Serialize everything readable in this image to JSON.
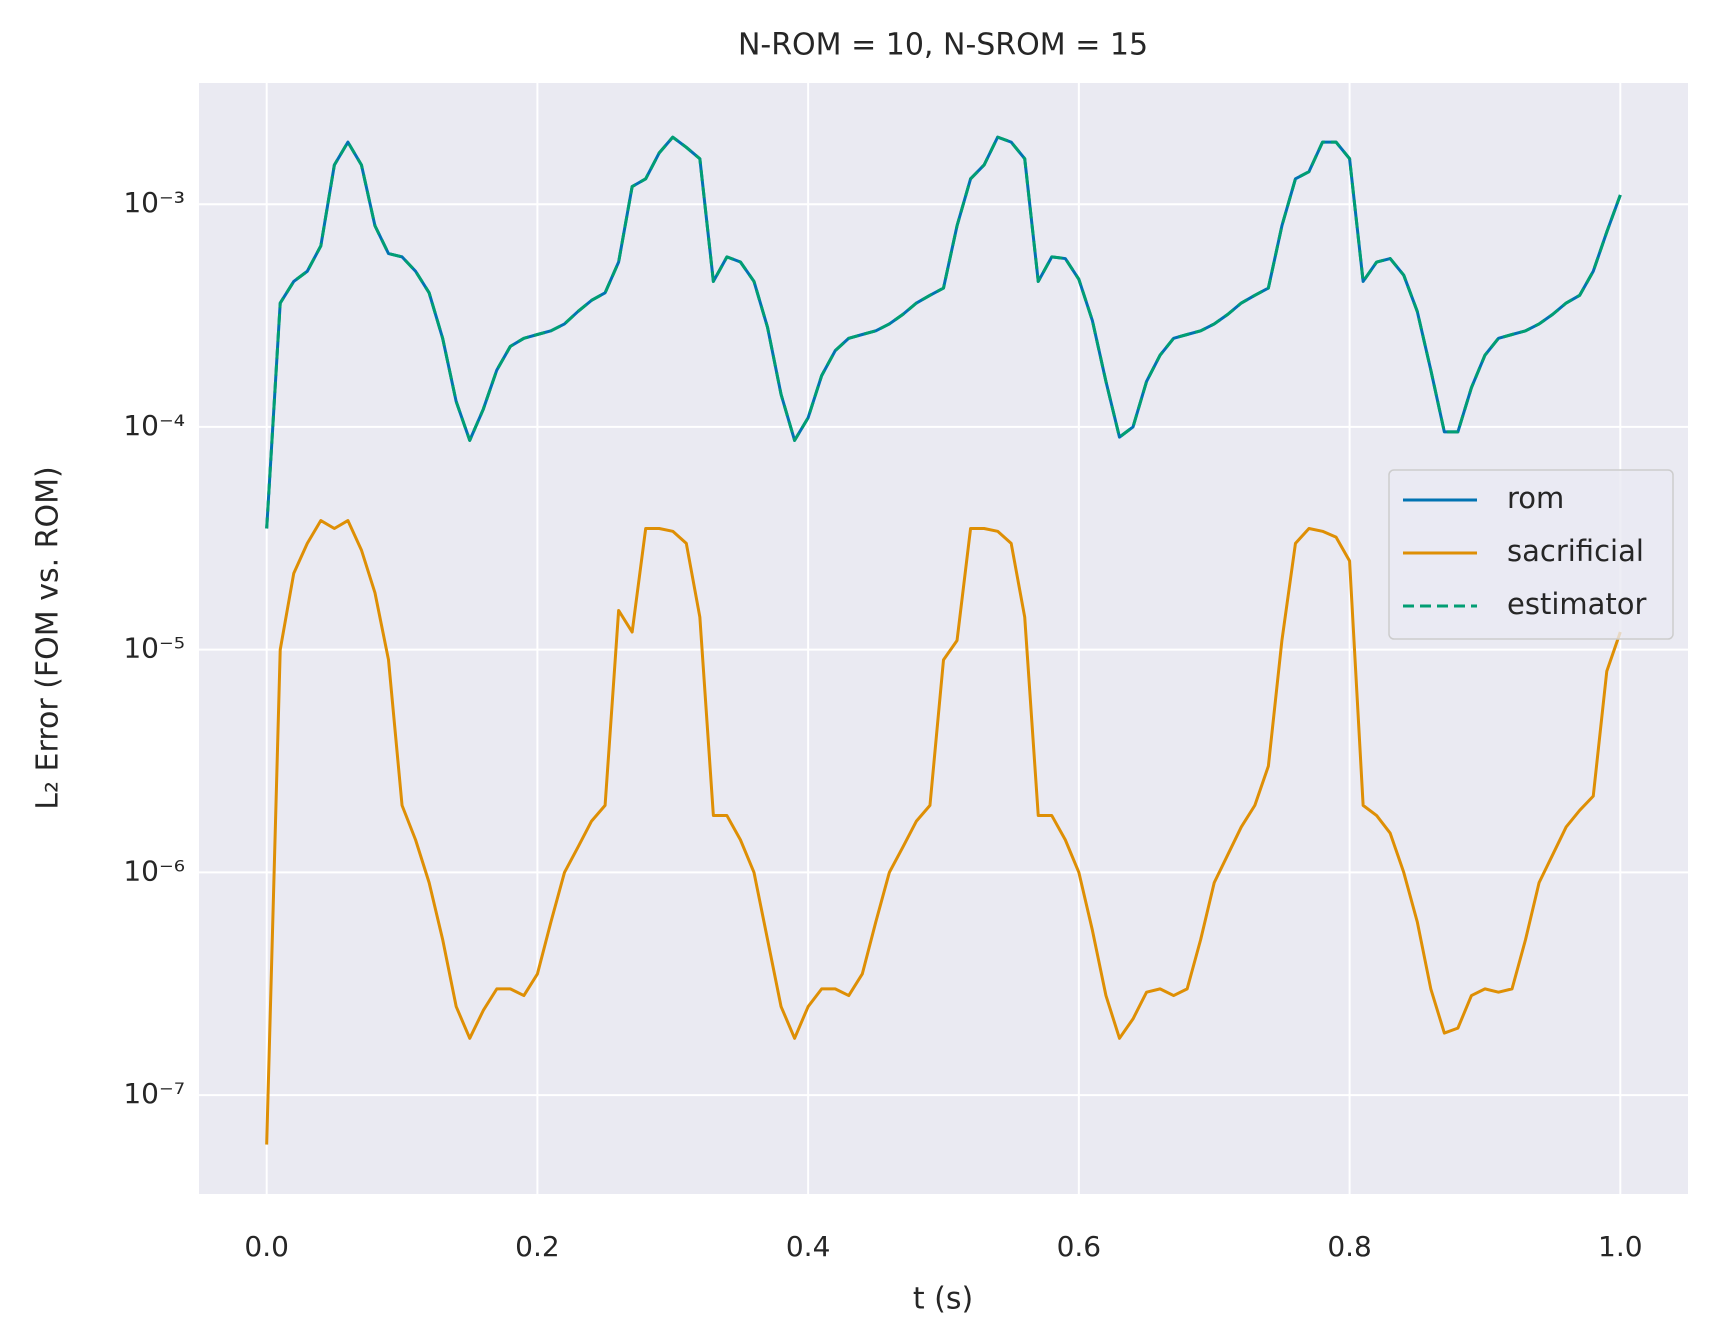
{
  "chart_data": {
    "type": "line",
    "title": "N-ROM = 10, N-SROM = 15",
    "x_label": "t (s)",
    "y_label": "L₂ Error (FOM vs. ROM)",
    "yscale": "log",
    "grid": true,
    "legend": "center right",
    "xlim": [
      -0.05,
      1.05
    ],
    "ylim": [
      3.6e-08,
      0.0035
    ],
    "xticks": [
      {
        "value": 0,
        "label": "0.0"
      },
      0.2,
      0.4,
      0.6,
      0.8,
      {
        "value": 1,
        "label": "1.0"
      }
    ],
    "yticks": [
      {
        "value": 1e-07,
        "label": "10⁻⁷"
      },
      {
        "value": 1e-06,
        "label": "10⁻⁶"
      },
      {
        "value": 1e-05,
        "label": "10⁻⁵"
      },
      {
        "value": 0.0001,
        "label": "10⁻⁴"
      },
      {
        "value": 0.001,
        "label": "10⁻³"
      }
    ],
    "x": [
      0,
      0.01,
      0.02,
      0.03,
      0.04,
      0.05,
      0.06,
      0.07,
      0.08,
      0.09,
      0.1,
      0.11,
      0.12,
      0.13,
      0.14,
      0.15,
      0.16,
      0.17,
      0.18,
      0.19,
      0.2,
      0.21,
      0.22,
      0.23,
      0.24,
      0.25,
      0.26,
      0.27,
      0.28,
      0.29,
      0.3,
      0.31,
      0.32,
      0.33,
      0.34,
      0.35,
      0.36,
      0.37,
      0.38,
      0.39,
      0.4,
      0.41,
      0.42,
      0.43,
      0.44,
      0.45,
      0.46,
      0.47,
      0.48,
      0.49,
      0.5,
      0.51,
      0.52,
      0.53,
      0.54,
      0.55,
      0.56,
      0.57,
      0.58,
      0.59,
      0.6,
      0.61,
      0.62,
      0.63,
      0.64,
      0.65,
      0.66,
      0.67,
      0.68,
      0.69,
      0.7,
      0.71,
      0.72,
      0.73,
      0.74,
      0.75,
      0.76,
      0.77,
      0.78,
      0.79,
      0.8,
      0.81,
      0.82,
      0.83,
      0.84,
      0.85,
      0.86,
      0.87,
      0.88,
      0.89,
      0.9,
      0.91,
      0.92,
      0.93,
      0.94,
      0.95,
      0.96,
      0.97,
      0.98,
      0.99,
      1
    ],
    "series": [
      {
        "name": "rom",
        "color": "#0173b2",
        "dash": false,
        "values": [
          3.5e-05,
          0.00036,
          0.00045,
          0.0005,
          0.00065,
          0.0015,
          0.0019,
          0.0015,
          0.0008,
          0.0006,
          0.00058,
          0.0005,
          0.0004,
          0.00025,
          0.00013,
          8.7e-05,
          0.00012,
          0.00018,
          0.00023,
          0.00025,
          0.00026,
          0.00027,
          0.00029,
          0.00033,
          0.00037,
          0.0004,
          0.00055,
          0.0012,
          0.0013,
          0.0017,
          0.002,
          0.0018,
          0.0016,
          0.00045,
          0.00058,
          0.00055,
          0.00045,
          0.00028,
          0.00014,
          8.7e-05,
          0.00011,
          0.00017,
          0.00022,
          0.00025,
          0.00026,
          0.00027,
          0.00029,
          0.00032,
          0.00036,
          0.00039,
          0.00042,
          0.0008,
          0.0013,
          0.0015,
          0.002,
          0.0019,
          0.0016,
          0.00045,
          0.00058,
          0.00057,
          0.00046,
          0.0003,
          0.00016,
          9e-05,
          0.0001,
          0.00016,
          0.00021,
          0.00025,
          0.00026,
          0.00027,
          0.00029,
          0.00032,
          0.00036,
          0.00039,
          0.00042,
          0.0008,
          0.0013,
          0.0014,
          0.0019,
          0.0019,
          0.0016,
          0.00045,
          0.00055,
          0.00057,
          0.00048,
          0.00033,
          0.00018,
          9.5e-05,
          9.5e-05,
          0.00015,
          0.00021,
          0.00025,
          0.00026,
          0.00027,
          0.00029,
          0.00032,
          0.00036,
          0.00039,
          0.0005,
          0.00075,
          0.0011
        ]
      },
      {
        "name": "sacrificial",
        "color": "#de8f05",
        "dash": false,
        "values": [
          6e-08,
          1e-05,
          2.2e-05,
          3e-05,
          3.8e-05,
          3.5e-05,
          3.8e-05,
          2.8e-05,
          1.8e-05,
          9e-06,
          2e-06,
          1.4e-06,
          9e-07,
          5e-07,
          2.5e-07,
          1.8e-07,
          2.4e-07,
          3e-07,
          3e-07,
          2.8e-07,
          3.5e-07,
          6e-07,
          1e-06,
          1.3e-06,
          1.7e-06,
          2e-06,
          1.5e-05,
          1.2e-05,
          3.5e-05,
          3.5e-05,
          3.4e-05,
          3e-05,
          1.4e-05,
          1.8e-06,
          1.8e-06,
          1.4e-06,
          1e-06,
          5e-07,
          2.5e-07,
          1.8e-07,
          2.5e-07,
          3e-07,
          3e-07,
          2.8e-07,
          3.5e-07,
          6e-07,
          1e-06,
          1.3e-06,
          1.7e-06,
          2e-06,
          9e-06,
          1.1e-05,
          3.5e-05,
          3.5e-05,
          3.4e-05,
          3e-05,
          1.4e-05,
          1.8e-06,
          1.8e-06,
          1.4e-06,
          1e-06,
          5.5e-07,
          2.8e-07,
          1.8e-07,
          2.2e-07,
          2.9e-07,
          3e-07,
          2.8e-07,
          3e-07,
          5e-07,
          9e-07,
          1.2e-06,
          1.6e-06,
          2e-06,
          3e-06,
          1.1e-05,
          3e-05,
          3.5e-05,
          3.4e-05,
          3.2e-05,
          2.5e-05,
          2e-06,
          1.8e-06,
          1.5e-06,
          1e-06,
          6e-07,
          3e-07,
          1.9e-07,
          2e-07,
          2.8e-07,
          3e-07,
          2.9e-07,
          3e-07,
          5e-07,
          9e-07,
          1.2e-06,
          1.6e-06,
          1.9e-06,
          2.2e-06,
          8e-06,
          1.2e-05
        ]
      },
      {
        "name": "estimator",
        "color": "#029e73",
        "dash": true,
        "values": [
          3.5e-05,
          0.00036,
          0.00045,
          0.0005,
          0.00065,
          0.0015,
          0.0019,
          0.0015,
          0.0008,
          0.0006,
          0.00058,
          0.0005,
          0.0004,
          0.00025,
          0.00013,
          8.7e-05,
          0.00012,
          0.00018,
          0.00023,
          0.00025,
          0.00026,
          0.00027,
          0.00029,
          0.00033,
          0.00037,
          0.0004,
          0.00055,
          0.0012,
          0.0013,
          0.0017,
          0.002,
          0.0018,
          0.0016,
          0.00045,
          0.00058,
          0.00055,
          0.00045,
          0.00028,
          0.00014,
          8.7e-05,
          0.00011,
          0.00017,
          0.00022,
          0.00025,
          0.00026,
          0.00027,
          0.00029,
          0.00032,
          0.00036,
          0.00039,
          0.00042,
          0.0008,
          0.0013,
          0.0015,
          0.002,
          0.0019,
          0.0016,
          0.00045,
          0.00058,
          0.00057,
          0.00046,
          0.0003,
          0.00016,
          9e-05,
          0.0001,
          0.00016,
          0.00021,
          0.00025,
          0.00026,
          0.00027,
          0.00029,
          0.00032,
          0.00036,
          0.00039,
          0.00042,
          0.0008,
          0.0013,
          0.0014,
          0.0019,
          0.0019,
          0.0016,
          0.00045,
          0.00055,
          0.00057,
          0.00048,
          0.00033,
          0.00018,
          9.5e-05,
          9.5e-05,
          0.00015,
          0.00021,
          0.00025,
          0.00026,
          0.00027,
          0.00029,
          0.00032,
          0.00036,
          0.00039,
          0.0005,
          0.00075,
          0.0011
        ]
      }
    ]
  }
}
